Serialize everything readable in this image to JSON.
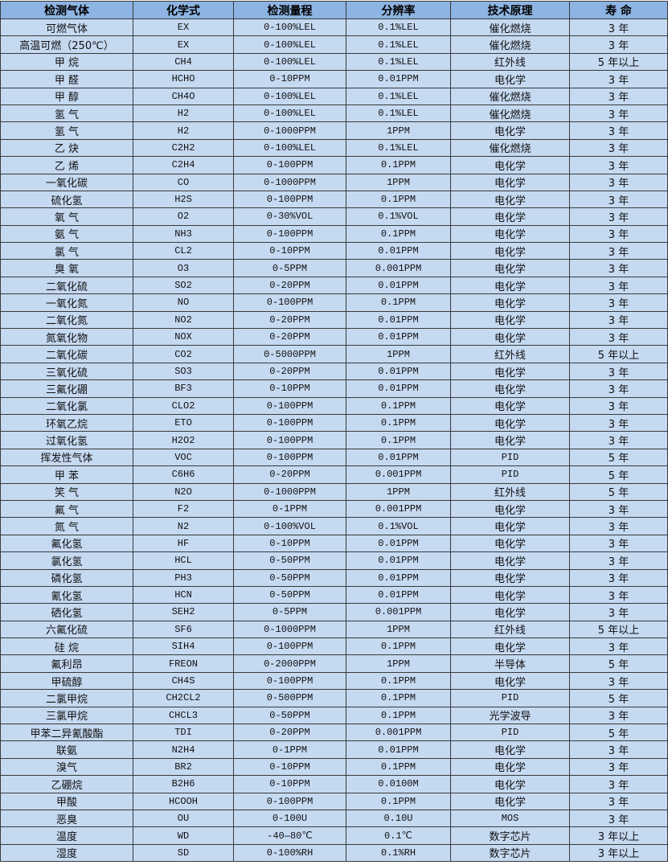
{
  "colors": {
    "header_bg": "#8db4e2",
    "row_bg": "#c5d9f1"
  },
  "headers": [
    "检测气体",
    "化学式",
    "检测量程",
    "分辨率",
    "技术原理",
    "寿 命"
  ],
  "rows": [
    [
      "可燃气体",
      "EX",
      "0-100%LEL",
      "0.1%LEL",
      "催化燃烧",
      "3 年"
    ],
    [
      "高温可燃（250℃）",
      "EX",
      "0-100%LEL",
      "0.1%LEL",
      "催化燃烧",
      "3 年"
    ],
    [
      "甲 烷",
      "CH4",
      "0-100%LEL",
      "0.1%LEL",
      "红外线",
      "5 年以上"
    ],
    [
      "甲 醛",
      "HCHO",
      "0-10PPM",
      "0.01PPM",
      "电化学",
      "3 年"
    ],
    [
      "甲 醇",
      "CH4O",
      "0-100%LEL",
      "0.1%LEL",
      "催化燃烧",
      "3 年"
    ],
    [
      "氢 气",
      "H2",
      "0-100%LEL",
      "0.1%LEL",
      "催化燃烧",
      "3 年"
    ],
    [
      "氢 气",
      "H2",
      "0-1000PPM",
      "1PPM",
      "电化学",
      "3 年"
    ],
    [
      "乙 炔",
      "C2H2",
      "0-100%LEL",
      "0.1%LEL",
      "催化燃烧",
      "3 年"
    ],
    [
      "乙 烯",
      "C2H4",
      "0-100PPM",
      "0.1PPM",
      "电化学",
      "3 年"
    ],
    [
      "一氧化碳",
      "CO",
      "0-1000PPM",
      "1PPM",
      "电化学",
      "3 年"
    ],
    [
      "硫化氢",
      "H2S",
      "0-100PPM",
      "0.1PPM",
      "电化学",
      "3 年"
    ],
    [
      "氧 气",
      "O2",
      "0-30%VOL",
      "0.1%VOL",
      "电化学",
      "3 年"
    ],
    [
      "氨 气",
      "NH3",
      "0-100PPM",
      "0.1PPM",
      "电化学",
      "3 年"
    ],
    [
      "氯 气",
      "CL2",
      "0-10PPM",
      "0.01PPM",
      "电化学",
      "3 年"
    ],
    [
      "臭 氧",
      "O3",
      "0-5PPM",
      "0.001PPM",
      "电化学",
      "3 年"
    ],
    [
      "二氧化硫",
      "SO2",
      "0-20PPM",
      "0.01PPM",
      "电化学",
      "3 年"
    ],
    [
      "一氧化氮",
      "NO",
      "0-100PPM",
      "0.1PPM",
      "电化学",
      "3 年"
    ],
    [
      "二氧化氮",
      "NO2",
      "0-20PPM",
      "0.01PPM",
      "电化学",
      "3 年"
    ],
    [
      "氮氧化物",
      "NOX",
      "0-20PPM",
      "0.01PPM",
      "电化学",
      "3 年"
    ],
    [
      "二氧化碳",
      "CO2",
      "0-5000PPM",
      "1PPM",
      "红外线",
      "5 年以上"
    ],
    [
      "三氧化硫",
      "SO3",
      "0-20PPM",
      "0.01PPM",
      "电化学",
      "3 年"
    ],
    [
      "三氟化硼",
      "BF3",
      "0-10PPM",
      "0.01PPM",
      "电化学",
      "3 年"
    ],
    [
      "二氧化氯",
      "CLO2",
      "0-100PPM",
      "0.1PPM",
      "电化学",
      "3 年"
    ],
    [
      "环氧乙烷",
      "ETO",
      "0-100PPM",
      "0.1PPM",
      "电化学",
      "3 年"
    ],
    [
      "过氧化氢",
      "H2O2",
      "0-100PPM",
      "0.1PPM",
      "电化学",
      "3 年"
    ],
    [
      "挥发性气体",
      "VOC",
      "0-100PPM",
      "0.01PPM",
      "PID",
      "5 年"
    ],
    [
      "甲 苯",
      "C6H6",
      "0-20PPM",
      "0.001PPM",
      "PID",
      "5 年"
    ],
    [
      "笑 气",
      "N2O",
      "0-1000PPM",
      "1PPM",
      "红外线",
      "5 年"
    ],
    [
      "氟 气",
      "F2",
      "0-1PPM",
      "0.001PPM",
      "电化学",
      "3 年"
    ],
    [
      "氮 气",
      "N2",
      "0-100%VOL",
      "0.1%VOL",
      "电化学",
      "3 年"
    ],
    [
      "氟化氢",
      "HF",
      "0-10PPM",
      "0.01PPM",
      "电化学",
      "3 年"
    ],
    [
      "氯化氢",
      "HCL",
      "0-50PPM",
      "0.01PPM",
      "电化学",
      "3 年"
    ],
    [
      "磷化氢",
      "PH3",
      "0-50PPM",
      "0.01PPM",
      "电化学",
      "3 年"
    ],
    [
      "氰化氢",
      "HCN",
      "0-50PPM",
      "0.01PPM",
      "电化学",
      "3 年"
    ],
    [
      "硒化氢",
      "SEH2",
      "0-5PPM",
      "0.001PPM",
      "电化学",
      "3 年"
    ],
    [
      "六氟化硫",
      "SF6",
      "0-1000PPM",
      "1PPM",
      "红外线",
      "5 年以上"
    ],
    [
      "硅 烷",
      "SIH4",
      "0-100PPM",
      "0.1PPM",
      "电化学",
      "3 年"
    ],
    [
      "氟利昂",
      "FREON",
      "0-2000PPM",
      "1PPM",
      "半导体",
      "5 年"
    ],
    [
      "甲硫醇",
      "CH4S",
      "0-100PPM",
      "0.1PPM",
      "电化学",
      "3 年"
    ],
    [
      "二氯甲烷",
      "CH2CL2",
      "0-500PPM",
      "0.1PPM",
      "PID",
      "5 年"
    ],
    [
      "三氯甲烷",
      "CHCL3",
      "0-50PPM",
      "0.1PPM",
      "光学波导",
      "3 年"
    ],
    [
      "甲苯二异氰酸酯",
      "TDI",
      "0-20PPM",
      "0.001PPM",
      "PID",
      "5 年"
    ],
    [
      "联氨",
      "N2H4",
      "0-1PPM",
      "0.01PPM",
      "电化学",
      "3 年"
    ],
    [
      "溴气",
      "BR2",
      "0-10PPM",
      "0.1PPM",
      "电化学",
      "3 年"
    ],
    [
      "乙硼烷",
      "B2H6",
      "0-10PPM",
      "0.0100M",
      "电化学",
      "3 年"
    ],
    [
      "甲酸",
      "HCOOH",
      "0-100PPM",
      "0.1PPM",
      "电化学",
      "3 年"
    ],
    [
      "恶臭",
      "OU",
      "0-100U",
      "0.10U",
      "MOS",
      "3 年"
    ],
    [
      "温度",
      "WD",
      "-40—80℃",
      "0.1℃",
      "数字芯片",
      "3 年以上"
    ],
    [
      "湿度",
      "SD",
      "0-100%RH",
      "0.1%RH",
      "数字芯片",
      "3 年以上"
    ]
  ]
}
